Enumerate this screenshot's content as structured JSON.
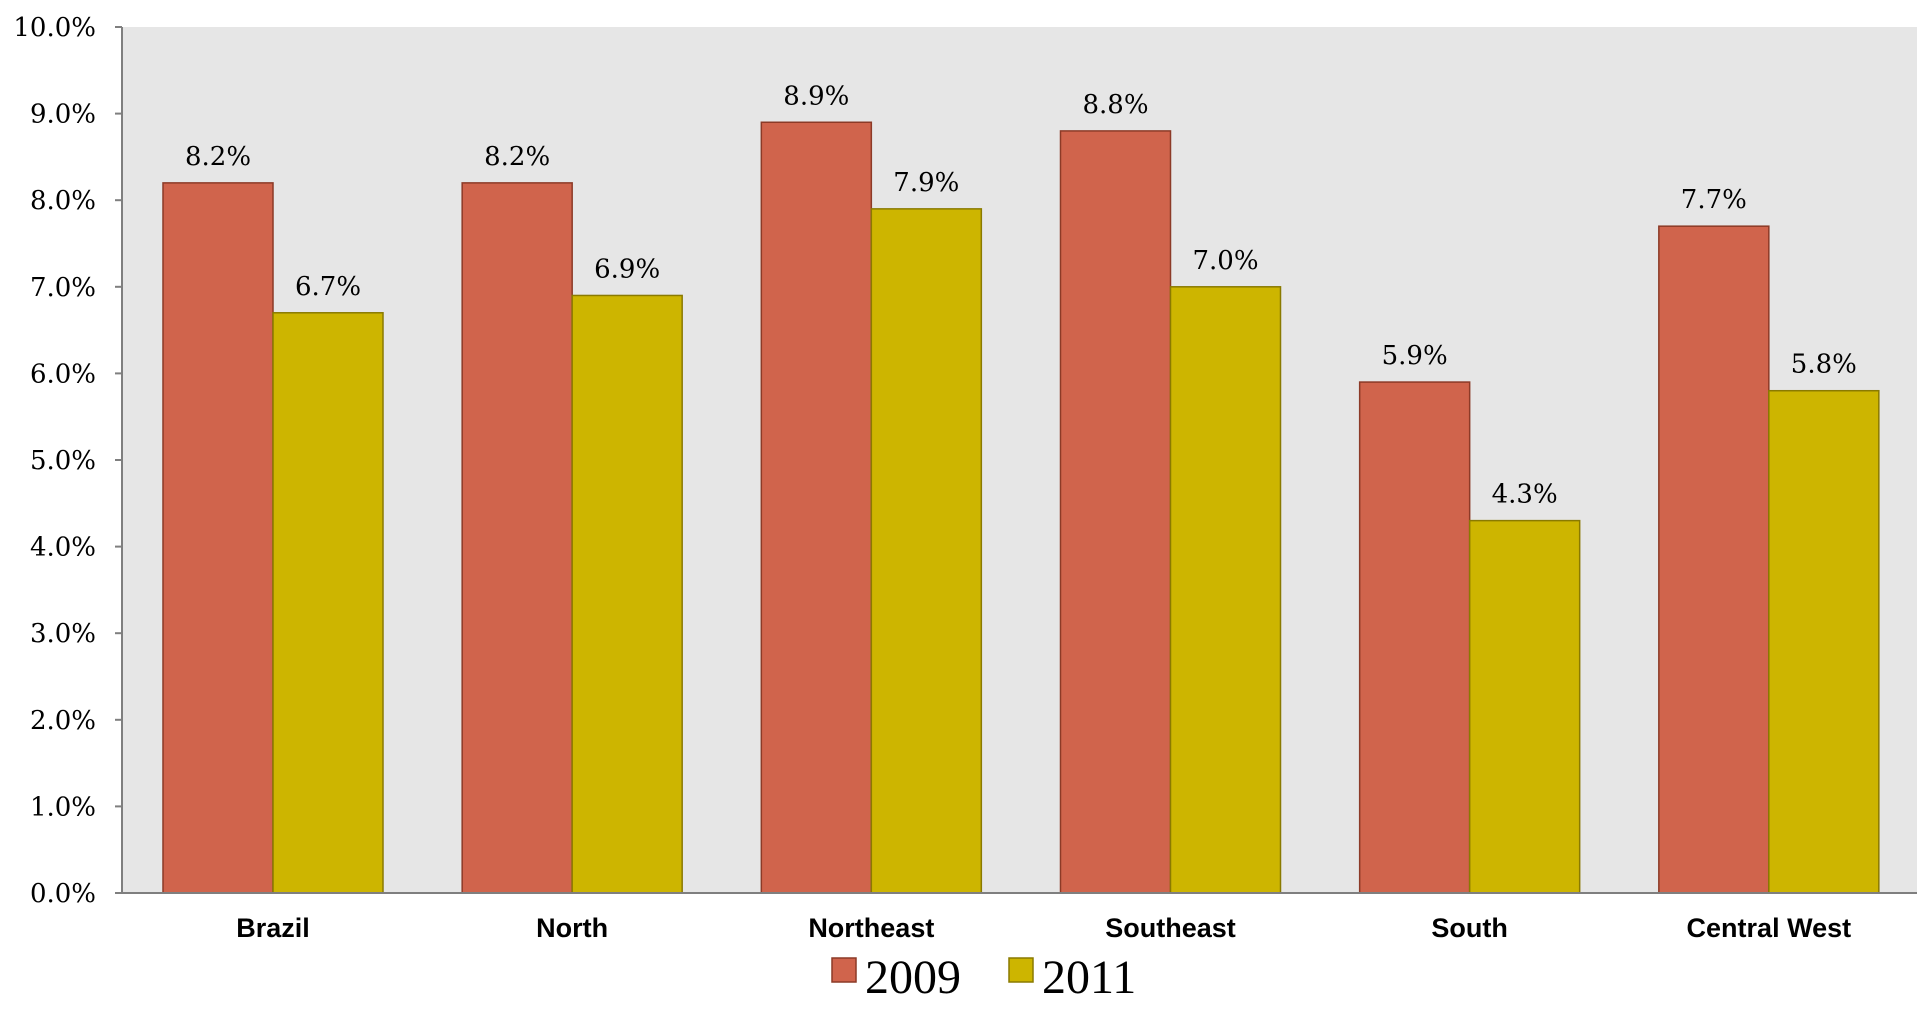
{
  "chart_data": {
    "type": "bar",
    "categories": [
      "Brazil",
      "North",
      "Northeast",
      "Southeast",
      "South",
      "Central West"
    ],
    "series": [
      {
        "name": "2009",
        "values": [
          8.2,
          8.2,
          8.9,
          8.8,
          5.9,
          7.7
        ],
        "labels": [
          "8.2%",
          "8.2%",
          "8.9%",
          "8.8%",
          "5.9%",
          "7.7%"
        ],
        "color": "#d0644c"
      },
      {
        "name": "2011",
        "values": [
          6.7,
          6.9,
          7.9,
          7.0,
          4.3,
          5.8
        ],
        "labels": [
          "6.7%",
          "6.9%",
          "7.9%",
          "7.0%",
          "4.3%",
          "5.8%"
        ],
        "color": "#cdb500"
      }
    ],
    "ylim": [
      0,
      10
    ],
    "yticks": [
      "0.0%",
      "1.0%",
      "2.0%",
      "3.0%",
      "4.0%",
      "5.0%",
      "6.0%",
      "7.0%",
      "8.0%",
      "9.0%",
      "10.0%"
    ],
    "plot_background": "#e6e6e6",
    "grid": false,
    "legend_position": "bottom"
  }
}
